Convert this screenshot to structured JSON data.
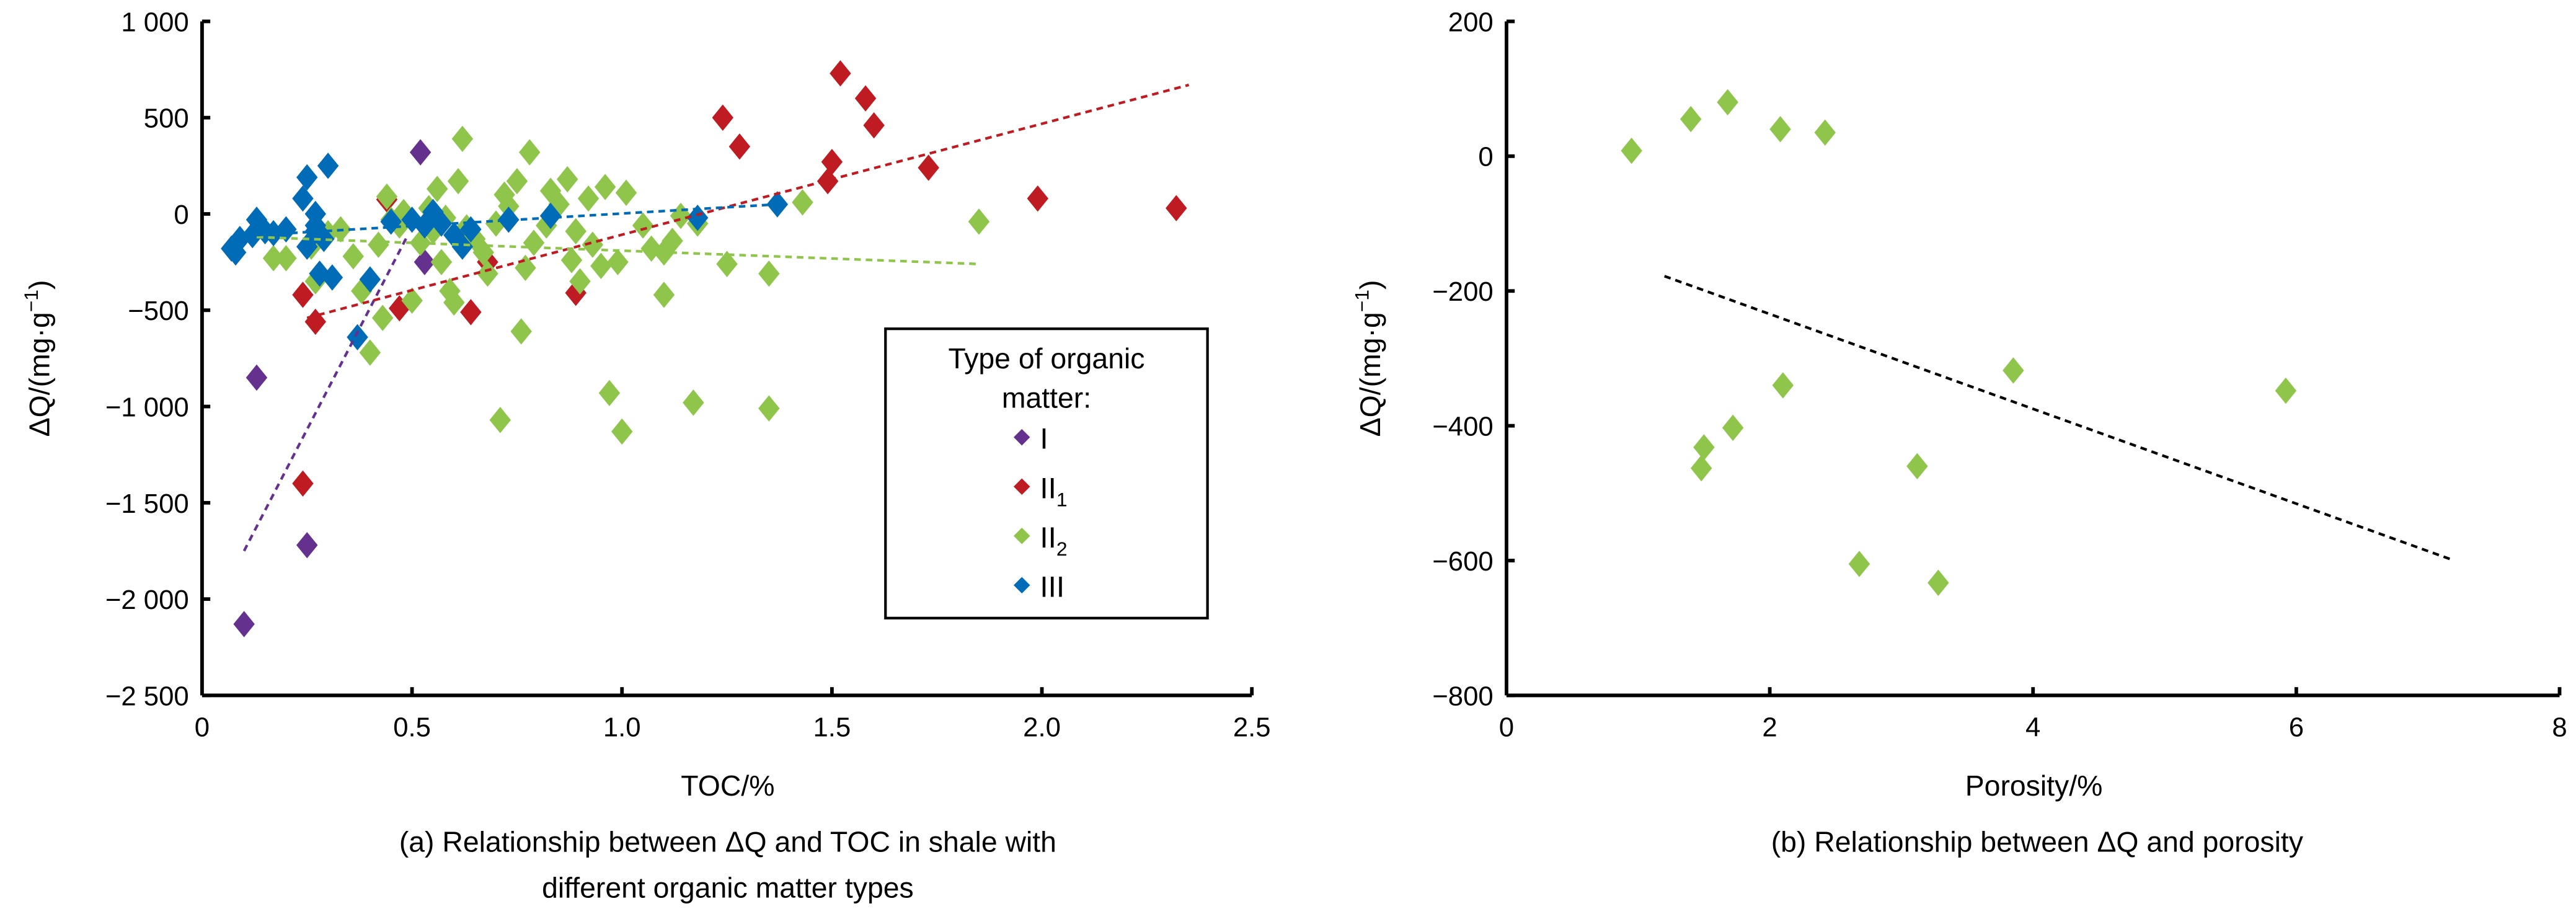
{
  "figure": {
    "panel_a": {
      "caption_line1": "(a) Relationship between ΔQ and TOC in shale with",
      "caption_line2": "different organic matter types"
    },
    "panel_b": {
      "caption": "(b) Relationship between ΔQ and porosity"
    }
  },
  "chart_data": [
    {
      "id": "a",
      "type": "scatter",
      "title": "(a) Relationship between ΔQ and TOC in shale with different organic matter types",
      "xlabel": "TOC/%",
      "ylabel_main": "ΔQ/(mg·g",
      "ylabel_sup": "−1",
      "ylabel_close": ")",
      "xlim": [
        0,
        2.5
      ],
      "ylim": [
        -2500,
        1000
      ],
      "xticks": [
        0,
        0.5,
        1.0,
        1.5,
        2.0,
        2.5
      ],
      "xtick_labels": [
        "0",
        "0.5",
        "1.0",
        "1.5",
        "2.0",
        "2.5"
      ],
      "yticks": [
        1000,
        500,
        0,
        -500,
        -1000,
        -1500,
        -2000,
        -2500
      ],
      "ytick_labels": [
        "1 000",
        "500",
        "0",
        "−500",
        "−1 000",
        "−1 500",
        "−2 000",
        "−2 500"
      ],
      "grid": false,
      "legend": {
        "title_line1": "Type of organic",
        "title_line2": "matter:",
        "placement": "lower-right",
        "entries": [
          {
            "label": "I",
            "sub": ""
          },
          {
            "label": "II",
            "sub": "1"
          },
          {
            "label": "II",
            "sub": "2"
          },
          {
            "label": "III",
            "sub": ""
          }
        ]
      },
      "series": [
        {
          "name": "I",
          "color": "#65318e",
          "points": [
            [
              0.52,
              320
            ],
            [
              0.53,
              -250
            ],
            [
              0.13,
              -850
            ],
            [
              0.25,
              -1720
            ],
            [
              0.1,
              -2130
            ]
          ],
          "trendline": {
            "x": [
              0.1,
              0.49
            ],
            "y": [
              -1750,
              -110
            ]
          }
        },
        {
          "name": "II1",
          "color": "#be1b22",
          "points": [
            [
              1.52,
              730
            ],
            [
              1.58,
              600
            ],
            [
              1.6,
              460
            ],
            [
              1.24,
              500
            ],
            [
              1.28,
              350
            ],
            [
              1.5,
              270
            ],
            [
              1.49,
              170
            ],
            [
              1.73,
              240
            ],
            [
              1.99,
              80
            ],
            [
              2.32,
              30
            ],
            [
              0.24,
              -420
            ],
            [
              0.27,
              -560
            ],
            [
              0.47,
              -490
            ],
            [
              0.68,
              -250
            ],
            [
              0.64,
              -510
            ],
            [
              0.89,
              -410
            ],
            [
              0.24,
              -1400
            ],
            [
              0.44,
              75
            ]
          ],
          "trendline": {
            "x": [
              0.25,
              2.35
            ],
            "y": [
              -540,
              670
            ]
          }
        },
        {
          "name": "II2",
          "color": "#8fc54b",
          "points": [
            [
              0.17,
              -230
            ],
            [
              0.2,
              -230
            ],
            [
              0.27,
              -350
            ],
            [
              0.33,
              -80
            ],
            [
              0.36,
              -220
            ],
            [
              0.38,
              -400
            ],
            [
              0.4,
              -720
            ],
            [
              0.42,
              -160
            ],
            [
              0.43,
              -540
            ],
            [
              0.44,
              90
            ],
            [
              0.45,
              -30
            ],
            [
              0.47,
              -60
            ],
            [
              0.48,
              10
            ],
            [
              0.5,
              -450
            ],
            [
              0.52,
              -150
            ],
            [
              0.55,
              -90
            ],
            [
              0.57,
              -250
            ],
            [
              0.58,
              -20
            ],
            [
              0.59,
              -400
            ],
            [
              0.6,
              -460
            ],
            [
              0.61,
              170
            ],
            [
              0.62,
              390
            ],
            [
              0.63,
              -70
            ],
            [
              0.65,
              -130
            ],
            [
              0.67,
              -200
            ],
            [
              0.7,
              -50
            ],
            [
              0.71,
              -1070
            ],
            [
              0.72,
              100
            ],
            [
              0.73,
              40
            ],
            [
              0.75,
              170
            ],
            [
              0.76,
              -610
            ],
            [
              0.77,
              -280
            ],
            [
              0.78,
              320
            ],
            [
              0.79,
              -150
            ],
            [
              0.82,
              -60
            ],
            [
              0.83,
              120
            ],
            [
              0.85,
              50
            ],
            [
              0.87,
              180
            ],
            [
              0.88,
              -240
            ],
            [
              0.89,
              -90
            ],
            [
              0.9,
              -350
            ],
            [
              0.92,
              80
            ],
            [
              0.93,
              -160
            ],
            [
              0.95,
              -270
            ],
            [
              0.96,
              140
            ],
            [
              0.97,
              -930
            ],
            [
              0.99,
              -250
            ],
            [
              1.0,
              -1130
            ],
            [
              1.01,
              110
            ],
            [
              1.05,
              -60
            ],
            [
              1.1,
              -200
            ],
            [
              1.1,
              -420
            ],
            [
              1.12,
              -140
            ],
            [
              1.14,
              -10
            ],
            [
              1.17,
              -980
            ],
            [
              1.18,
              -50
            ],
            [
              1.25,
              -260
            ],
            [
              1.35,
              -310
            ],
            [
              1.35,
              -1010
            ],
            [
              1.43,
              60
            ],
            [
              1.85,
              -40
            ],
            [
              0.26,
              -170
            ],
            [
              0.3,
              -100
            ],
            [
              0.54,
              30
            ],
            [
              0.56,
              130
            ],
            [
              0.68,
              -310
            ],
            [
              1.07,
              -180
            ]
          ],
          "trendline": {
            "x": [
              0.13,
              1.85
            ],
            "y": [
              -120,
              -260
            ]
          }
        },
        {
          "name": "III",
          "color": "#006bb6",
          "points": [
            [
              0.07,
              -180
            ],
            [
              0.08,
              -200
            ],
            [
              0.09,
              -130
            ],
            [
              0.12,
              -110
            ],
            [
              0.13,
              -30
            ],
            [
              0.15,
              -90
            ],
            [
              0.17,
              -100
            ],
            [
              0.2,
              -80
            ],
            [
              0.24,
              80
            ],
            [
              0.25,
              190
            ],
            [
              0.25,
              -170
            ],
            [
              0.27,
              -60
            ],
            [
              0.27,
              -90
            ],
            [
              0.27,
              0
            ],
            [
              0.28,
              -310
            ],
            [
              0.29,
              -130
            ],
            [
              0.3,
              250
            ],
            [
              0.31,
              -330
            ],
            [
              0.37,
              -640
            ],
            [
              0.4,
              -340
            ],
            [
              0.45,
              -40
            ],
            [
              0.5,
              -30
            ],
            [
              0.53,
              -60
            ],
            [
              0.55,
              10
            ],
            [
              0.57,
              -50
            ],
            [
              0.6,
              -110
            ],
            [
              0.62,
              -170
            ],
            [
              0.64,
              -80
            ],
            [
              0.73,
              -30
            ],
            [
              0.83,
              -10
            ],
            [
              1.18,
              -20
            ],
            [
              1.37,
              50
            ]
          ],
          "trendline": {
            "x": [
              0.13,
              1.37
            ],
            "y": [
              -110,
              50
            ]
          }
        }
      ]
    },
    {
      "id": "b",
      "type": "scatter",
      "title": "(b) Relationship between ΔQ and porosity",
      "xlabel": "Porosity/%",
      "ylabel_main": "ΔQ/(mg·g",
      "ylabel_sup": "−1",
      "ylabel_close": ")",
      "xlim": [
        0,
        8
      ],
      "ylim": [
        -800,
        200
      ],
      "xticks": [
        0,
        2,
        4,
        6,
        8
      ],
      "xtick_labels": [
        "0",
        "2",
        "4",
        "6",
        "8"
      ],
      "yticks": [
        200,
        0,
        -200,
        -400,
        -600,
        -800
      ],
      "ytick_labels": [
        "200",
        "0",
        "−200",
        "−400",
        "−600",
        "−800"
      ],
      "grid": false,
      "legend": null,
      "series": [
        {
          "name": "II2",
          "color": "#8fc54b",
          "points": [
            [
              0.95,
              8
            ],
            [
              1.4,
              55
            ],
            [
              1.68,
              80
            ],
            [
              2.08,
              40
            ],
            [
              2.42,
              35
            ],
            [
              2.1,
              -340
            ],
            [
              1.72,
              -403
            ],
            [
              1.5,
              -432
            ],
            [
              1.48,
              -463
            ],
            [
              2.68,
              -605
            ],
            [
              3.12,
              -460
            ],
            [
              3.28,
              -633
            ],
            [
              3.85,
              -318
            ],
            [
              5.92,
              -348
            ]
          ],
          "trendline": {
            "x": [
              1.2,
              7.2
            ],
            "y": [
              -178,
              -600
            ],
            "color": "#000000"
          }
        }
      ]
    }
  ]
}
